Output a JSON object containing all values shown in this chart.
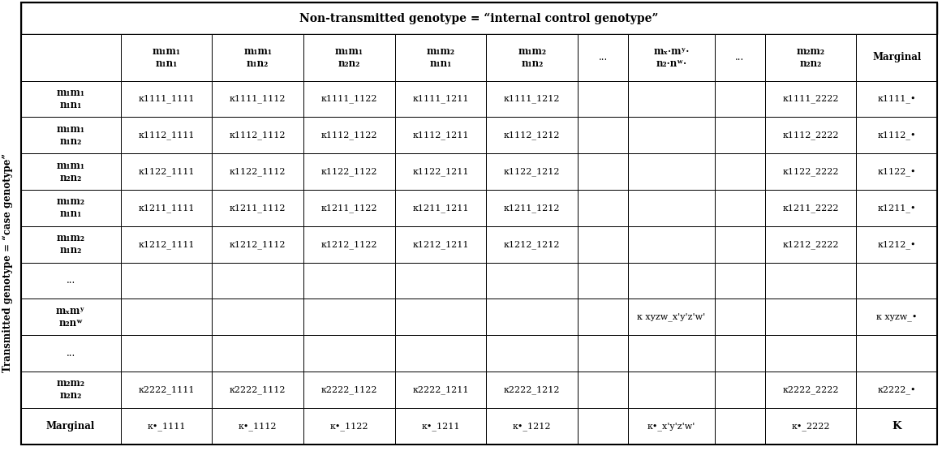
{
  "title": "Non-transmitted genotype = “internal control genotype”",
  "ylabel": "Transmitted genotype = “case genotype”",
  "col_headers_line1": [
    "m₁m₁",
    "m₁m₁",
    "m₁m₁",
    "m₁m₂",
    "m₁m₂",
    "...",
    "mₓ·mʸ·",
    "...",
    "m₂m₂",
    "Marginal"
  ],
  "col_headers_line2": [
    "n₁n₁",
    "n₁n₂",
    "n₂n₂",
    "n₁n₁",
    "n₁n₂",
    "",
    "n₂·nʷ·",
    "",
    "n₂n₂",
    ""
  ],
  "row_headers_line1": [
    "m₁m₁",
    "m₁m₁",
    "m₁m₁",
    "m₁m₂",
    "m₁m₂",
    "...",
    "mₓmʸ",
    "...",
    "m₂m₂",
    "Marginal"
  ],
  "row_headers_line2": [
    "n₁n₁",
    "n₁n₂",
    "n₂n₂",
    "n₁n₁",
    "n₁n₂",
    "",
    "n₂nʷ",
    "",
    "n₂n₂",
    ""
  ],
  "cells": [
    [
      "κ1111_1111",
      "κ1111_1112",
      "κ1111_1122",
      "κ1111_1211",
      "κ1111_1212",
      "",
      "",
      "",
      "κ1111_2222",
      "κ1111_•"
    ],
    [
      "κ1112_1111",
      "κ1112_1112",
      "κ1112_1122",
      "κ1112_1211",
      "κ1112_1212",
      "",
      "",
      "",
      "κ1112_2222",
      "κ1112_•"
    ],
    [
      "κ1122_1111",
      "κ1122_1112",
      "κ1122_1122",
      "κ1122_1211",
      "κ1122_1212",
      "",
      "",
      "",
      "κ1122_2222",
      "κ1122_•"
    ],
    [
      "κ1211_1111",
      "κ1211_1112",
      "κ1211_1122",
      "κ1211_1211",
      "κ1211_1212",
      "",
      "",
      "",
      "κ1211_2222",
      "κ1211_•"
    ],
    [
      "κ1212_1111",
      "κ1212_1112",
      "κ1212_1122",
      "κ1212_1211",
      "κ1212_1212",
      "",
      "",
      "",
      "κ1212_2222",
      "κ1212_•"
    ],
    [
      "",
      "",
      "",
      "",
      "",
      "",
      "",
      "",
      "",
      ""
    ],
    [
      "",
      "",
      "",
      "",
      "",
      "",
      "κ xyzw_x'y'z'w'",
      "",
      "",
      "κ xyzw_•"
    ],
    [
      "",
      "",
      "",
      "",
      "",
      "",
      "",
      "",
      "",
      ""
    ],
    [
      "κ2222_1111",
      "κ2222_1112",
      "κ2222_1122",
      "κ2222_1211",
      "κ2222_1212",
      "",
      "",
      "",
      "κ2222_2222",
      "κ2222_•"
    ],
    [
      "κ•_1111",
      "κ•_1112",
      "κ•_1122",
      "κ•_1211",
      "κ•_1212",
      "",
      "κ•_x'y'z'w'",
      "",
      "κ•_2222",
      "K"
    ]
  ],
  "background_color": "#ffffff",
  "text_color": "#000000"
}
